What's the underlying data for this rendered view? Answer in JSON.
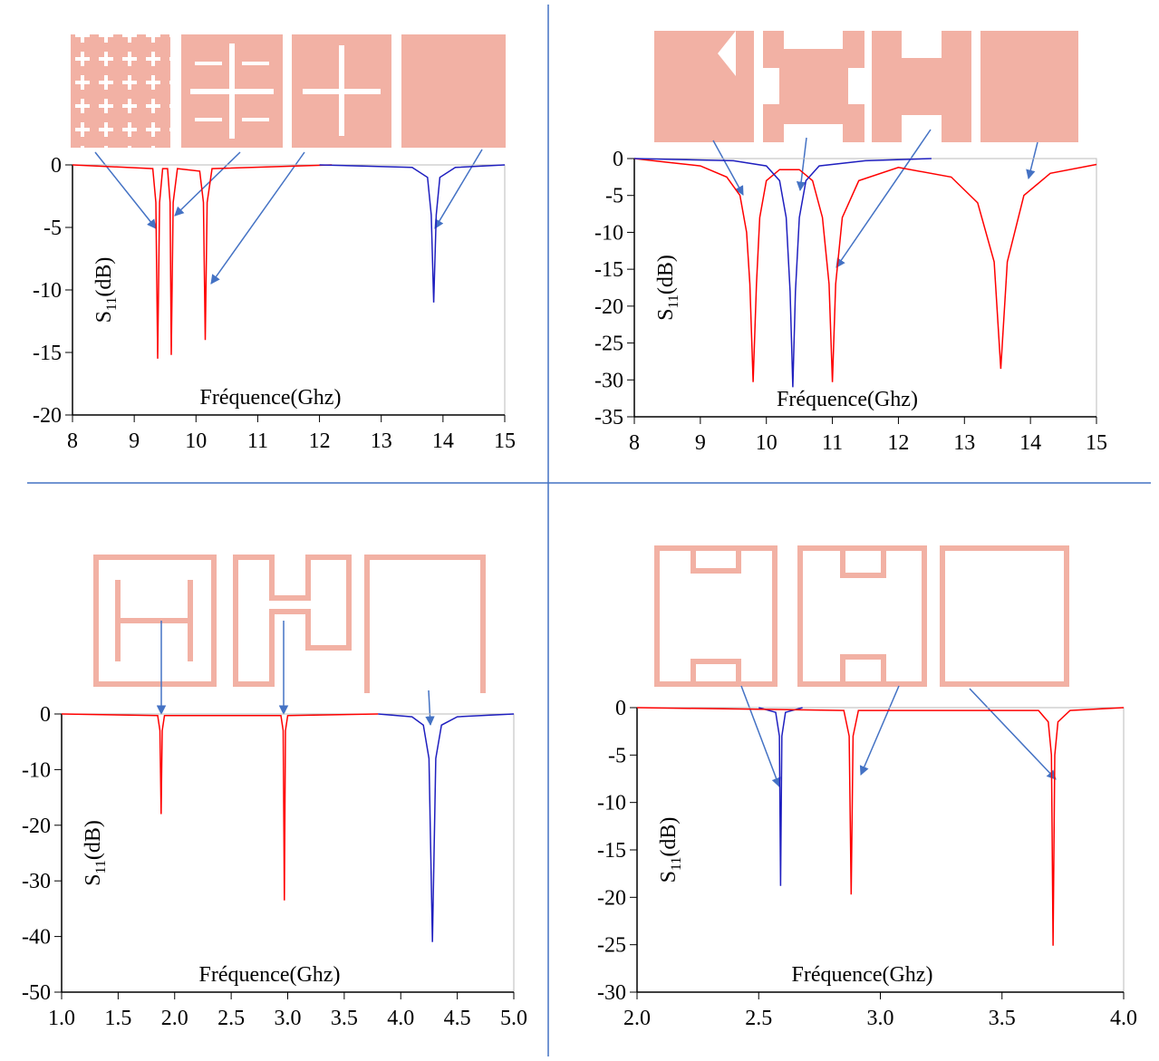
{
  "chart_data": [
    {
      "type": "line",
      "xlabel": "Fréquence(Ghz)",
      "ylabel": {
        "text": "S",
        "subscript": "11",
        "suffix": "(dB)"
      },
      "xlim": [
        8,
        15
      ],
      "xticks": [
        8,
        9,
        10,
        11,
        12,
        13,
        14,
        15
      ],
      "ylim": [
        -20,
        0
      ],
      "yticks": [
        0,
        -5,
        -10,
        -15,
        -20
      ],
      "series": [
        {
          "color": "#ff0000",
          "x": [
            8,
            9.3,
            9.35,
            9.38,
            9.41,
            9.46,
            9.54,
            9.58,
            9.6,
            9.63,
            9.7,
            10.06,
            10.12,
            10.15,
            10.18,
            10.26,
            12.2
          ],
          "values": [
            0,
            -0.3,
            -3,
            -15.5,
            -3,
            -0.3,
            -0.3,
            -3,
            -15.2,
            -3,
            -0.3,
            -0.5,
            -3,
            -14,
            -3,
            -0.3,
            0
          ]
        },
        {
          "color": "#1f1fbf",
          "x": [
            12,
            13.5,
            13.75,
            13.81,
            13.85,
            13.89,
            13.95,
            14.2,
            15
          ],
          "values": [
            0,
            -0.2,
            -1,
            -4,
            -11,
            -4,
            -1,
            -0.2,
            0
          ]
        }
      ]
    },
    {
      "type": "line",
      "xlabel": "Fréquence(Ghz)",
      "ylabel": {
        "text": "S",
        "subscript": "11",
        "suffix": "(dB)"
      },
      "xlim": [
        8,
        15
      ],
      "xticks": [
        8,
        9,
        10,
        11,
        12,
        13,
        14,
        15
      ],
      "ylim": [
        -35,
        0
      ],
      "yticks": [
        0,
        -5,
        -10,
        -15,
        -20,
        -25,
        -30,
        -35
      ],
      "series": [
        {
          "color": "#ff0000",
          "x": [
            8,
            8.5,
            9,
            9.4,
            9.6,
            9.7,
            9.75,
            9.8,
            9.85,
            9.9,
            10,
            10.2,
            10.5,
            10.7,
            10.85,
            10.95,
            11,
            11.05,
            11.15,
            11.4,
            12,
            12.8,
            13.2,
            13.45,
            13.55,
            13.65,
            13.9,
            14.3,
            15
          ],
          "values": [
            0,
            -0.5,
            -1,
            -2.5,
            -5,
            -10,
            -17,
            -30.3,
            -17,
            -8,
            -3,
            -1.5,
            -1.5,
            -3,
            -8,
            -17,
            -30.3,
            -17,
            -8,
            -3,
            -1.2,
            -2.5,
            -6,
            -14,
            -28.5,
            -14,
            -5,
            -2,
            -0.8
          ]
        },
        {
          "color": "#1f1fbf",
          "x": [
            8,
            9.5,
            10,
            10.2,
            10.3,
            10.36,
            10.4,
            10.44,
            10.5,
            10.6,
            10.8,
            11.5,
            12.5
          ],
          "values": [
            0,
            -0.3,
            -1,
            -3,
            -8,
            -18,
            -31,
            -18,
            -8,
            -3,
            -1,
            -0.3,
            0
          ]
        }
      ]
    },
    {
      "type": "line",
      "xlabel": "Fréquence(Ghz)",
      "ylabel": {
        "text": "S",
        "subscript": "11",
        "suffix": "(dB)"
      },
      "xlim": [
        1,
        5
      ],
      "xticks": [
        {
          "value": 1,
          "label": "1.0"
        },
        1.5,
        {
          "value": 2,
          "label": "2.0"
        },
        2.5,
        {
          "value": 3,
          "label": "3.0"
        },
        3.5,
        {
          "value": 4,
          "label": "4.0"
        },
        4.5,
        {
          "value": 5,
          "label": "5.0"
        }
      ],
      "ylim": [
        -50,
        0
      ],
      "yticks": [
        0,
        -10,
        -20,
        -30,
        -40,
        -50
      ],
      "series": [
        {
          "color": "#ff0000",
          "x": [
            1,
            1.85,
            1.87,
            1.88,
            1.89,
            1.91,
            2.94,
            2.96,
            2.97,
            2.98,
            3.0,
            3.8
          ],
          "values": [
            0,
            -0.3,
            -3,
            -18,
            -3,
            -0.3,
            -0.3,
            -3,
            -33.5,
            -3,
            -0.3,
            0
          ]
        },
        {
          "color": "#1f1fbf",
          "x": [
            3.8,
            4.1,
            4.2,
            4.25,
            4.28,
            4.31,
            4.36,
            4.5,
            5
          ],
          "values": [
            0,
            -0.5,
            -2,
            -8,
            -41,
            -8,
            -2,
            -0.5,
            0
          ]
        }
      ]
    },
    {
      "type": "line",
      "xlabel": "Fréquence(Ghz)",
      "ylabel": {
        "text": "S",
        "subscript": "11",
        "suffix": "(dB)"
      },
      "xlim": [
        2,
        4
      ],
      "xticks": [
        {
          "value": 2,
          "label": "2.0"
        },
        2.5,
        {
          "value": 3,
          "label": "3.0"
        },
        3.5,
        {
          "value": 4,
          "label": "4.0"
        }
      ],
      "ylim": [
        -30,
        0
      ],
      "yticks": [
        0,
        -5,
        -10,
        -15,
        -20,
        -25,
        -30
      ],
      "series": [
        {
          "color": "#1f1fbf",
          "x": [
            2.5,
            2.57,
            2.585,
            2.59,
            2.595,
            2.61,
            2.68
          ],
          "values": [
            0,
            -0.5,
            -3,
            -18.8,
            -3,
            -0.5,
            0
          ]
        },
        {
          "color": "#ff0000",
          "x": [
            2,
            2.85,
            2.872,
            2.88,
            2.888,
            2.91,
            3.65,
            3.69,
            3.703,
            3.71,
            3.717,
            3.73,
            3.78,
            4
          ],
          "values": [
            0,
            -0.3,
            -3,
            -19.7,
            -3,
            -0.3,
            -0.3,
            -1.5,
            -5,
            -25.1,
            -5,
            -1.5,
            -0.3,
            0
          ]
        }
      ]
    }
  ]
}
